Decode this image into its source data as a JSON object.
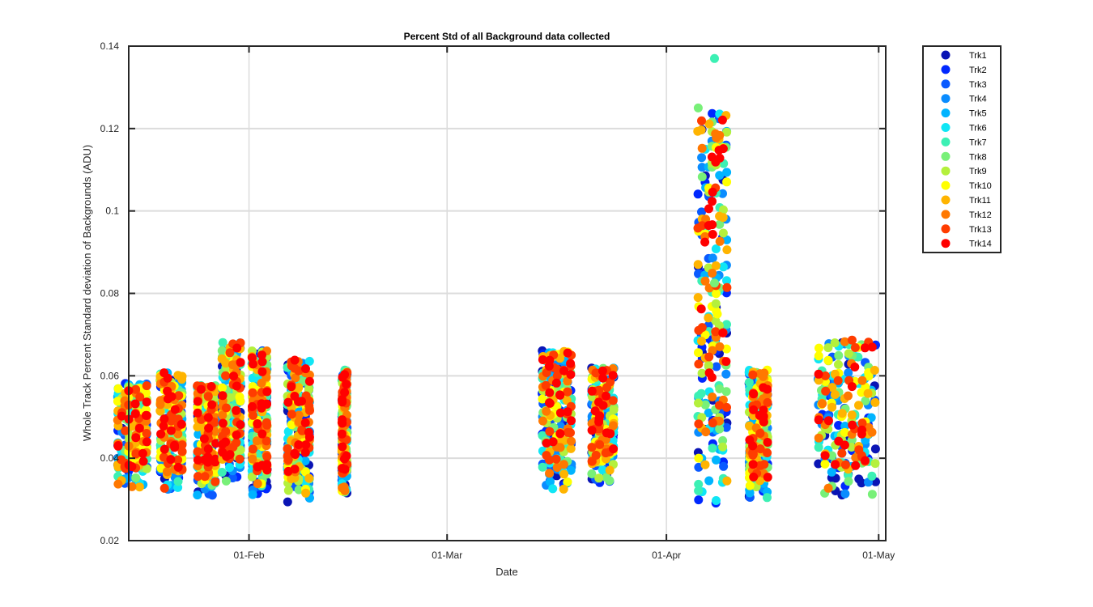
{
  "chart_data": {
    "type": "scatter",
    "title": "Percent Std of all Background data collected",
    "xlabel": "Date",
    "ylabel": "Whole Track Percent Standard deviation of Backgrounds (ADU)",
    "ylim": [
      0.02,
      0.14
    ],
    "xlim_days": [
      -17,
      90
    ],
    "x_ticks": [
      {
        "day": 0,
        "label": "01-Feb"
      },
      {
        "day": 28,
        "label": "01-Mar"
      },
      {
        "day": 59,
        "label": "01-Apr"
      },
      {
        "day": 89,
        "label": "01-May"
      }
    ],
    "y_ticks": [
      {
        "value": 0.02,
        "label": "0.02"
      },
      {
        "value": 0.04,
        "label": "0.04"
      },
      {
        "value": 0.06,
        "label": "0.06"
      },
      {
        "value": 0.08,
        "label": "0.08"
      },
      {
        "value": 0.1,
        "label": "0.1"
      },
      {
        "value": 0.12,
        "label": "0.12"
      },
      {
        "value": 0.14,
        "label": "0.14"
      }
    ],
    "grid": true,
    "legend_position": "outside-top-right",
    "series": [
      {
        "name": "Trk1",
        "color": "#0a14b4"
      },
      {
        "name": "Trk2",
        "color": "#0028ff"
      },
      {
        "name": "Trk3",
        "color": "#0a5aff"
      },
      {
        "name": "Trk4",
        "color": "#0a8cff"
      },
      {
        "name": "Trk5",
        "color": "#00b4ff"
      },
      {
        "name": "Trk6",
        "color": "#10e6f5"
      },
      {
        "name": "Trk7",
        "color": "#3cf0b4"
      },
      {
        "name": "Trk8",
        "color": "#78f078"
      },
      {
        "name": "Trk9",
        "color": "#b4f03c"
      },
      {
        "name": "Trk10",
        "color": "#ffff00"
      },
      {
        "name": "Trk11",
        "color": "#ffb400"
      },
      {
        "name": "Trk12",
        "color": "#ff7800"
      },
      {
        "name": "Trk13",
        "color": "#ff3c00"
      },
      {
        "name": "Trk14",
        "color": "#ff0000"
      }
    ],
    "clusters": [
      {
        "day": -16.5,
        "width": 4.0,
        "min": 0.033,
        "max": 0.061
      },
      {
        "day": -11.0,
        "width": 3.0,
        "min": 0.032,
        "max": 0.064
      },
      {
        "day": -6.0,
        "width": 2.5,
        "min": 0.031,
        "max": 0.061
      },
      {
        "day": -2.5,
        "width": 2.5,
        "min": 0.034,
        "max": 0.072
      },
      {
        "day": 1.5,
        "width": 2.0,
        "min": 0.031,
        "max": 0.07
      },
      {
        "day": 7.0,
        "width": 3.0,
        "min": 0.029,
        "max": 0.068
      },
      {
        "day": 13.5,
        "width": 0.6,
        "min": 0.031,
        "max": 0.065
      },
      {
        "day": 43.5,
        "width": 4.0,
        "min": 0.032,
        "max": 0.07
      },
      {
        "day": 50.0,
        "width": 3.0,
        "min": 0.034,
        "max": 0.065
      },
      {
        "day": 65.5,
        "width": 4.0,
        "min": 0.029,
        "max": 0.137
      },
      {
        "day": 72.0,
        "width": 2.5,
        "min": 0.03,
        "max": 0.065
      },
      {
        "day": 84.5,
        "width": 8.0,
        "min": 0.031,
        "max": 0.073
      }
    ]
  }
}
